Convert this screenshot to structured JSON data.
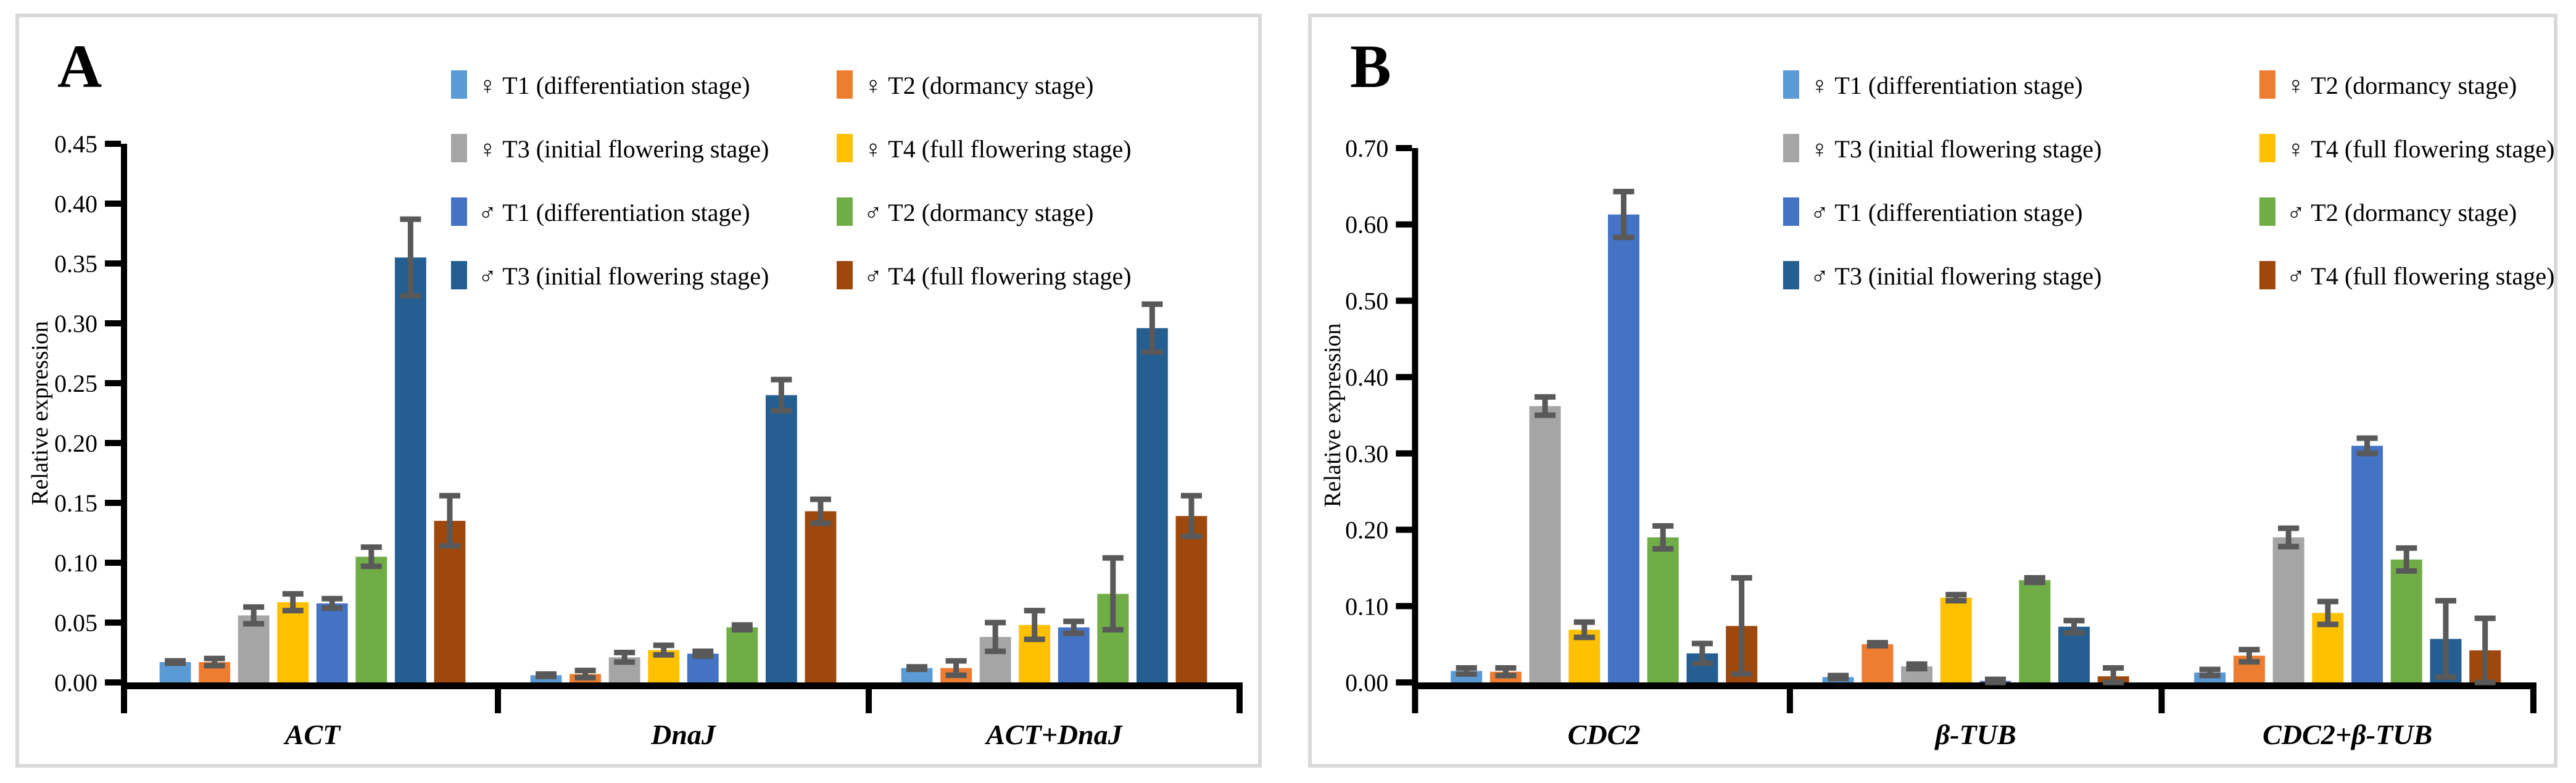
{
  "figure": {
    "ylabel": "Relative expression",
    "axis_color": "#000000",
    "error_bar_color": "#595959",
    "panel_border_color": "#d9d9d9",
    "background_color": "#ffffff",
    "panels": [
      {
        "letter": "A"
      },
      {
        "letter": "B"
      }
    ]
  },
  "chart_data": [
    {
      "type": "bar",
      "panel": "A",
      "title": "",
      "xlabel": "",
      "ylabel": "Relative expression",
      "categories": [
        "ACT",
        "DnaJ",
        "ACT+DnaJ"
      ],
      "ylim": [
        0,
        0.45
      ],
      "ytick_step": 0.05,
      "grid": false,
      "legend_position": "top-right",
      "series": [
        {
          "name": "♀ T1 (differentiation stage)",
          "color": "#5B9BD5",
          "values": [
            0.017,
            0.006,
            0.012
          ],
          "errors": [
            0.001,
            0.001,
            0.001
          ]
        },
        {
          "name": "♀ T2 (dormancy stage)",
          "color": "#ED7D31",
          "values": [
            0.017,
            0.007,
            0.012
          ],
          "errors": [
            0.003,
            0.003,
            0.006
          ]
        },
        {
          "name": "♀ T3 (initial flowering stage)",
          "color": "#A5A5A5",
          "values": [
            0.056,
            0.021,
            0.038
          ],
          "errors": [
            0.007,
            0.004,
            0.012
          ]
        },
        {
          "name": "♀ T4 (full flowering stage)",
          "color": "#FFC000",
          "values": [
            0.067,
            0.027,
            0.048
          ],
          "errors": [
            0.007,
            0.004,
            0.012
          ]
        },
        {
          "name": "♂ T1 (differentiation stage)",
          "color": "#4472C4",
          "values": [
            0.066,
            0.024,
            0.046
          ],
          "errors": [
            0.004,
            0.002,
            0.005
          ]
        },
        {
          "name": "♂ T2 (dormancy stage)",
          "color": "#70AD47",
          "values": [
            0.105,
            0.046,
            0.074
          ],
          "errors": [
            0.008,
            0.002,
            0.03
          ]
        },
        {
          "name": "♂ T3 (initial flowering stage)",
          "color": "#255E91",
          "values": [
            0.355,
            0.24,
            0.296
          ],
          "errors": [
            0.032,
            0.013,
            0.02
          ]
        },
        {
          "name": "♂ T4 (full flowering stage)",
          "color": "#9E480E",
          "values": [
            0.135,
            0.143,
            0.139
          ],
          "errors": [
            0.021,
            0.01,
            0.017
          ]
        }
      ]
    },
    {
      "type": "bar",
      "panel": "B",
      "title": "",
      "xlabel": "",
      "ylabel": "Relative expression",
      "categories": [
        "CDC2",
        "β-TUB",
        "CDC2+β-TUB"
      ],
      "ylim": [
        0,
        0.7
      ],
      "ytick_step": 0.1,
      "grid": false,
      "legend_position": "top-right",
      "series": [
        {
          "name": "♀ T1 (differentiation stage)",
          "color": "#5B9BD5",
          "values": [
            0.015,
            0.007,
            0.013
          ],
          "errors": [
            0.004,
            0.002,
            0.004
          ]
        },
        {
          "name": "♀ T2 (dormancy stage)",
          "color": "#ED7D31",
          "values": [
            0.014,
            0.05,
            0.035
          ],
          "errors": [
            0.005,
            0.002,
            0.008
          ]
        },
        {
          "name": "♀ T3 (initial flowering stage)",
          "color": "#A5A5A5",
          "values": [
            0.362,
            0.021,
            0.19
          ],
          "errors": [
            0.012,
            0.003,
            0.012
          ]
        },
        {
          "name": "♀ T4 (full flowering stage)",
          "color": "#FFC000",
          "values": [
            0.069,
            0.111,
            0.091
          ],
          "errors": [
            0.01,
            0.004,
            0.015
          ]
        },
        {
          "name": "♂ T1 (differentiation stage)",
          "color": "#4472C4",
          "values": [
            0.613,
            0.002,
            0.31
          ],
          "errors": [
            0.03,
            0.002,
            0.01
          ]
        },
        {
          "name": "♂ T2 (dormancy stage)",
          "color": "#70AD47",
          "values": [
            0.19,
            0.134,
            0.161
          ],
          "errors": [
            0.015,
            0.003,
            0.015
          ]
        },
        {
          "name": "♂ T3 (initial flowering stage)",
          "color": "#255E91",
          "values": [
            0.038,
            0.073,
            0.057
          ],
          "errors": [
            0.013,
            0.008,
            0.05
          ]
        },
        {
          "name": "♂ T4 (full flowering stage)",
          "color": "#9E480E",
          "values": [
            0.074,
            0.008,
            0.042
          ],
          "errors": [
            0.063,
            0.011,
            0.042
          ]
        }
      ]
    }
  ]
}
